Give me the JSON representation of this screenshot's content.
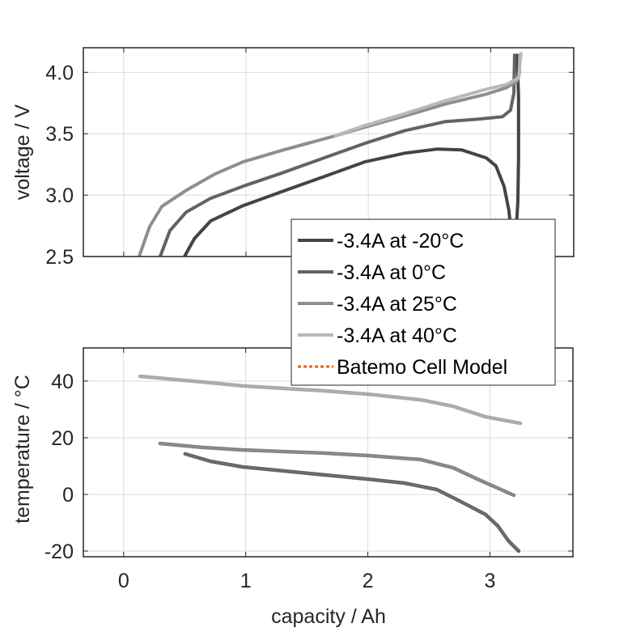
{
  "chart_data": [
    {
      "type": "line",
      "panel": "top",
      "xlabel": "",
      "ylabel": "voltage / V",
      "xlim": [
        -0.33,
        3.68
      ],
      "ylim": [
        2.5,
        4.2
      ],
      "xticks": [
        0,
        1,
        2,
        3
      ],
      "xtick_labels": [
        "",
        "",
        "",
        ""
      ],
      "yticks": [
        2.5,
        3.0,
        3.5,
        4.0
      ],
      "ytick_labels": [
        "2.5",
        "3.0",
        "3.5",
        "4.0"
      ],
      "grid": true,
      "series": [
        {
          "name": "-3.4A at -20°C",
          "color": "#444444",
          "x": [
            0.497,
            0.577,
            0.71,
            0.975,
            1.306,
            1.638,
            1.97,
            2.301,
            2.566,
            2.765,
            2.964,
            3.044,
            3.11,
            3.15,
            3.176,
            3.19,
            3.203,
            3.223,
            3.229,
            3.229,
            3.216
          ],
          "y": [
            2.5,
            2.645,
            2.789,
            2.914,
            3.033,
            3.151,
            3.27,
            3.342,
            3.375,
            3.368,
            3.303,
            3.237,
            3.072,
            2.875,
            2.612,
            2.5,
            2.612,
            2.941,
            3.3,
            3.8,
            4.151
          ]
        },
        {
          "name": "-3.4A at 0°C",
          "color": "#636363",
          "x": [
            0.298,
            0.378,
            0.511,
            0.71,
            0.975,
            1.306,
            1.638,
            1.97,
            2.301,
            2.633,
            2.898,
            3.097,
            3.163,
            3.19,
            3.196
          ],
          "y": [
            2.5,
            2.711,
            2.862,
            2.974,
            3.072,
            3.184,
            3.303,
            3.421,
            3.526,
            3.599,
            3.618,
            3.638,
            3.691,
            3.829,
            4.151
          ]
        },
        {
          "name": "-3.4A at 25°C",
          "color": "#8e8e8e",
          "x": [
            0.126,
            0.212,
            0.312,
            0.511,
            0.743,
            0.975,
            1.306,
            1.718,
            1.97,
            2.301,
            2.633,
            2.964,
            3.13,
            3.216,
            3.236,
            3.236
          ],
          "y": [
            2.5,
            2.743,
            2.908,
            3.039,
            3.171,
            3.27,
            3.368,
            3.48,
            3.553,
            3.645,
            3.743,
            3.822,
            3.875,
            3.928,
            3.993,
            4.151
          ]
        },
        {
          "name": "-3.4A at 40°C",
          "color": "#b9b9b9",
          "x": [
            1.718,
            1.97,
            2.301,
            2.633,
            2.964,
            3.13,
            3.229,
            3.249
          ],
          "y": [
            3.48,
            3.566,
            3.664,
            3.77,
            3.862,
            3.901,
            3.954,
            4.164
          ]
        }
      ]
    },
    {
      "type": "line",
      "panel": "bottom",
      "xlabel": "capacity / Ah",
      "ylabel": "temperature / °C",
      "xlim": [
        -0.33,
        3.68
      ],
      "ylim": [
        -22,
        51.7
      ],
      "xticks": [
        0,
        1,
        2,
        3
      ],
      "xtick_labels": [
        "0",
        "1",
        "2",
        "3"
      ],
      "yticks": [
        -20,
        0,
        20,
        40
      ],
      "ytick_labels": [
        "-20",
        "0",
        "20",
        "40"
      ],
      "grid": true,
      "series": [
        {
          "name": "-3.4A at -20°C",
          "color": "#4a4a4a",
          "x": [
            0.504,
            0.71,
            0.975,
            1.638,
            2.003,
            2.301,
            2.566,
            2.765,
            2.964,
            3.064,
            3.15,
            3.236
          ],
          "y": [
            14.3,
            11.7,
            9.7,
            6.9,
            5.4,
            4.0,
            1.7,
            -2.6,
            -7.1,
            -11.1,
            -16.3,
            -20.0
          ]
        },
        {
          "name": "-3.4A at 0°C",
          "color": "#6e6e6e",
          "x": [
            0.298,
            0.643,
            0.975,
            1.638,
            2.003,
            2.434,
            2.699,
            2.898,
            3.196
          ],
          "y": [
            18.0,
            16.6,
            15.7,
            14.6,
            13.7,
            12.3,
            9.4,
            5.4,
            -0.3
          ]
        },
        {
          "name": "-3.4A at 40°C",
          "color": "#9a9a9a",
          "x": [
            0.133,
            0.643,
            0.975,
            1.638,
            2.003,
            2.434,
            2.699,
            2.964,
            3.249
          ],
          "y": [
            41.7,
            39.7,
            38.3,
            36.6,
            35.4,
            33.4,
            31.1,
            27.4,
            25.1
          ]
        }
      ]
    }
  ],
  "legend": {
    "placement": "center-right",
    "entries": [
      {
        "label": "-3.4A at -20°C",
        "color": "#444444",
        "style": "solid"
      },
      {
        "label": "-3.4A at 0°C",
        "color": "#636363",
        "style": "solid"
      },
      {
        "label": "-3.4A at 25°C",
        "color": "#8e8e8e",
        "style": "solid"
      },
      {
        "label": "-3.4A at 40°C",
        "color": "#b9b9b9",
        "style": "solid"
      },
      {
        "label": "Batemo Cell Model",
        "color": "#e8601c",
        "style": "dotted"
      }
    ]
  }
}
